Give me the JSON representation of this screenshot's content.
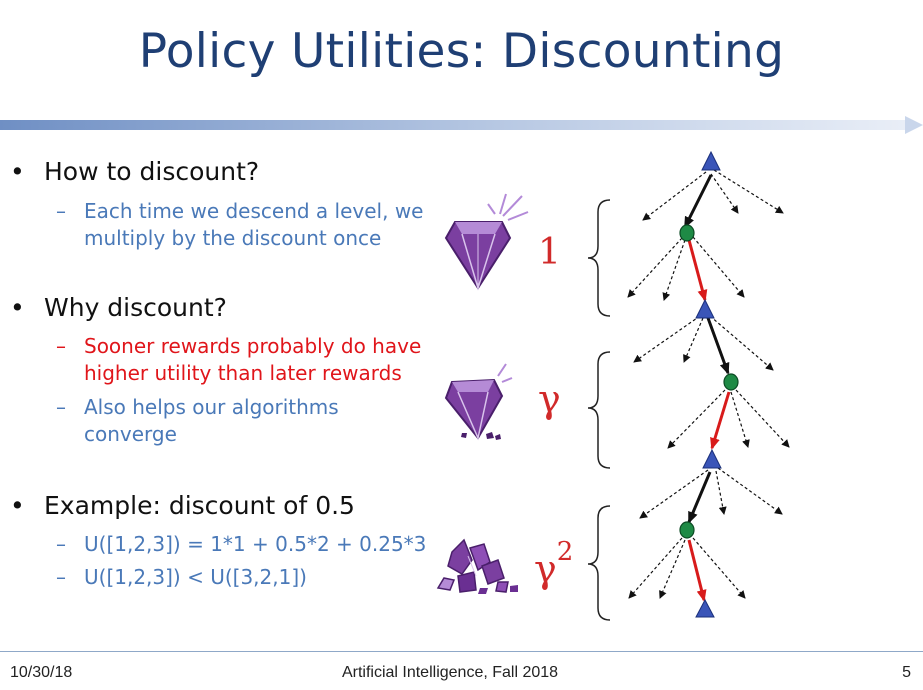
{
  "slide": {
    "title": "Policy Utilities: Discounting",
    "bullets": [
      {
        "text": "How to discount?",
        "subs": [
          {
            "text": "Each time we descend a level, we multiply by the discount once",
            "lines": [
              "Each time we descend a level, we",
              "multiply by the discount once"
            ],
            "color": "#4a79b8"
          }
        ]
      },
      {
        "text": "Why discount?",
        "subs": [
          {
            "lines": [
              "Sooner rewards probably do have",
              "higher utility than later rewards"
            ],
            "color": "#e0151a"
          },
          {
            "lines": [
              "Also helps our algorithms",
              "converge"
            ],
            "color": "#4a79b8"
          }
        ]
      },
      {
        "text": "Example: discount of 0.5",
        "subs": [
          {
            "lines": [
              "U([1,2,3]) = 1*1 + 0.5*2 + 0.25*3"
            ],
            "color": "#4a79b8"
          },
          {
            "lines": [
              "U([1,2,3]) < U([3,2,1])"
            ],
            "color": "#4a79b8"
          }
        ]
      }
    ],
    "dash": "–",
    "bullet_glyph": "•"
  },
  "figure": {
    "factors": {
      "level1": "1",
      "level2": "γ",
      "level3_base": "γ",
      "level3_exp": "2"
    },
    "icons": [
      "intact-gem-icon",
      "chipped-gem-icon",
      "shattered-gem-icon"
    ]
  },
  "footer": {
    "date": "10/30/18",
    "course": "Artificial Intelligence, Fall 2018",
    "page": "5"
  },
  "colors": {
    "title": "#1f3f74",
    "accent_blue": "#4a79b8",
    "accent_red": "#e0151a",
    "gem_purple": "#7b3fa0",
    "max_node": "#3a55b8",
    "chance_node": "#1e8a45"
  }
}
